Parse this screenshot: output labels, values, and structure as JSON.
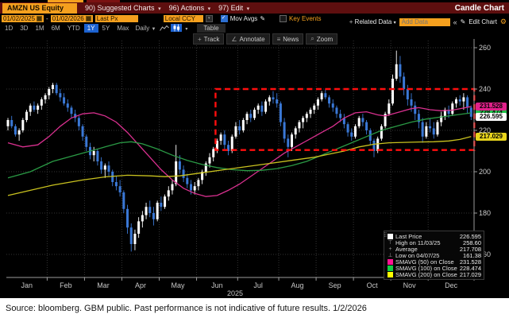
{
  "title_bar": {
    "ticker": "AMZN US Equity",
    "menus": [
      {
        "label": "90) Suggested Charts"
      },
      {
        "label": "96) Actions"
      },
      {
        "label": "97) Edit"
      }
    ],
    "chart_type": "Candle Chart"
  },
  "toolbar": {
    "date_from": "01/02/2025",
    "date_to": "01/02/2026",
    "px_field": "Last Px",
    "currency": "Local CCY",
    "mov_avgs_label": "Mov Avgs",
    "mov_avgs_checked": true,
    "key_events_label": "Key Events",
    "key_events_checked": false,
    "related_data_label": "Related Data",
    "add_data_placeholder": "Add Data",
    "collapse_label": "«",
    "edit_chart_label": "Edit Chart"
  },
  "range_bar": {
    "ranges": [
      "1D",
      "3D",
      "1M",
      "6M",
      "YTD",
      "1Y",
      "5Y",
      "Max"
    ],
    "selected_range": "1Y",
    "period": "Daily",
    "table_label": "Table"
  },
  "chart_toolbar": {
    "buttons": [
      {
        "icon": "+",
        "label": "Track"
      },
      {
        "icon": "∠",
        "label": "Annotate"
      },
      {
        "icon": "≡",
        "label": "News"
      },
      {
        "icon": "⌕",
        "label": "Zoom"
      }
    ]
  },
  "axes": {
    "y_ticks": [
      260,
      240,
      220,
      200,
      180,
      160
    ],
    "x_labels": [
      "Jan",
      "Feb",
      "Mar",
      "Apr",
      "May",
      "Jun",
      "Jul",
      "Aug",
      "Sep",
      "Oct",
      "Nov",
      "Dec"
    ],
    "year_label": "2025"
  },
  "price_tags": [
    {
      "value": "231.528",
      "color": "#e0218a",
      "text": "#000",
      "price": 231.528,
      "z": 3
    },
    {
      "value": "228.474",
      "color": "#1fc24a",
      "text": "#000",
      "price": 228.474,
      "z": 1
    },
    {
      "value": "226.595",
      "color": "#ffffff",
      "text": "#000",
      "price": 226.595,
      "z": 2
    },
    {
      "value": "217.029",
      "color": "#e8d51c",
      "text": "#000",
      "price": 217.029,
      "z": 1
    }
  ],
  "legend": {
    "rows": [
      {
        "marker": "square",
        "color": "#ffffff",
        "label": "Last Price",
        "value": "226.595"
      },
      {
        "marker": "glyph",
        "glyph": "⊤",
        "label": "High on 11/03/25",
        "value": "258.60"
      },
      {
        "marker": "glyph",
        "glyph": "+",
        "label": "Average",
        "value": "217.708"
      },
      {
        "marker": "glyph",
        "glyph": "⊥",
        "label": "Low on 04/07/25",
        "value": "161.38"
      },
      {
        "marker": "square",
        "color": "#ff1493",
        "label": "SMAVG (50)  on Close",
        "value": "231.528"
      },
      {
        "marker": "square",
        "color": "#0fd143",
        "label": "SMAVG (100)  on Close",
        "value": "228.474"
      },
      {
        "marker": "square",
        "color": "#ffff00",
        "label": "SMAVG (200)  on Close",
        "value": "217.029"
      }
    ]
  },
  "footer": {
    "source_text": "Source: bloomberg. GBM public. Past performance is not indicative of future results. 1/2/2026"
  },
  "chart_data": {
    "type": "candlestick",
    "security": "AMZN US Equity",
    "period": "Daily, 01/02/2025 - 01/02/2026",
    "ylim": [
      155,
      265
    ],
    "up_color": "#ffffff",
    "down_color": "#3a78d6",
    "month_start_idx": [
      0,
      11,
      21,
      31,
      41,
      51,
      62,
      73,
      83,
      93,
      103,
      113
    ],
    "candles": [
      [
        222,
        226,
        220,
        225
      ],
      [
        225,
        227,
        221,
        222
      ],
      [
        222,
        223,
        217,
        218
      ],
      [
        218,
        221,
        215,
        220
      ],
      [
        220,
        226,
        219,
        225
      ],
      [
        225,
        230,
        224,
        229
      ],
      [
        229,
        233,
        227,
        232
      ],
      [
        232,
        234,
        229,
        230
      ],
      [
        230,
        233,
        228,
        232
      ],
      [
        232,
        236,
        230,
        235
      ],
      [
        235,
        238,
        233,
        237
      ],
      [
        237,
        241,
        235,
        240
      ],
      [
        240,
        243,
        238,
        242
      ],
      [
        242,
        243,
        237,
        238
      ],
      [
        238,
        240,
        234,
        236
      ],
      [
        236,
        238,
        232,
        233
      ],
      [
        233,
        235,
        229,
        231
      ],
      [
        231,
        232,
        226,
        228
      ],
      [
        228,
        230,
        224,
        226
      ],
      [
        226,
        227,
        220,
        222
      ],
      [
        222,
        223,
        215,
        217
      ],
      [
        217,
        218,
        210,
        212
      ],
      [
        212,
        214,
        206,
        208
      ],
      [
        208,
        212,
        205,
        210
      ],
      [
        210,
        211,
        203,
        205
      ],
      [
        205,
        207,
        199,
        201
      ],
      [
        201,
        204,
        197,
        203
      ],
      [
        203,
        205,
        198,
        200
      ],
      [
        200,
        201,
        193,
        195
      ],
      [
        195,
        198,
        191,
        193
      ],
      [
        193,
        196,
        188,
        190
      ],
      [
        190,
        191,
        180,
        182
      ],
      [
        182,
        184,
        170,
        173
      ],
      [
        173,
        175,
        161.38,
        165
      ],
      [
        165,
        172,
        162,
        170
      ],
      [
        170,
        178,
        168,
        176
      ],
      [
        176,
        181,
        173,
        179
      ],
      [
        179,
        185,
        177,
        183
      ],
      [
        183,
        186,
        178,
        180
      ],
      [
        180,
        183,
        174,
        177
      ],
      [
        177,
        186,
        176,
        185
      ],
      [
        185,
        188,
        181,
        183
      ],
      [
        183,
        189,
        182,
        188
      ],
      [
        188,
        193,
        186,
        191
      ],
      [
        191,
        196,
        189,
        194
      ],
      [
        194,
        213,
        193,
        205
      ],
      [
        205,
        208,
        199,
        201
      ],
      [
        201,
        203,
        195,
        197
      ],
      [
        197,
        199,
        192,
        194
      ],
      [
        194,
        196,
        189,
        191
      ],
      [
        191,
        195,
        189,
        193
      ],
      [
        193,
        197,
        191,
        196
      ],
      [
        196,
        201,
        194,
        200
      ],
      [
        200,
        205,
        198,
        204
      ],
      [
        204,
        209,
        202,
        207
      ],
      [
        207,
        212,
        205,
        211
      ],
      [
        211,
        216,
        209,
        215
      ],
      [
        215,
        219,
        213,
        218
      ],
      [
        218,
        220,
        211,
        213
      ],
      [
        213,
        215,
        208,
        210
      ],
      [
        210,
        218,
        209,
        217
      ],
      [
        217,
        224,
        216,
        222
      ],
      [
        222,
        225,
        218,
        220
      ],
      [
        220,
        226,
        219,
        225
      ],
      [
        225,
        229,
        223,
        228
      ],
      [
        228,
        230,
        224,
        226
      ],
      [
        226,
        231,
        225,
        230
      ],
      [
        230,
        233,
        228,
        232
      ],
      [
        232,
        234,
        227,
        229
      ],
      [
        229,
        235,
        228,
        234
      ],
      [
        234,
        237,
        232,
        236
      ],
      [
        236,
        239,
        233,
        235
      ],
      [
        235,
        238,
        231,
        233
      ],
      [
        233,
        234,
        222,
        224
      ],
      [
        224,
        226,
        214,
        216
      ],
      [
        216,
        218,
        207,
        212
      ],
      [
        212,
        219,
        210,
        218
      ],
      [
        218,
        222,
        216,
        221
      ],
      [
        221,
        225,
        219,
        224
      ],
      [
        224,
        227,
        221,
        226
      ],
      [
        226,
        229,
        224,
        228
      ],
      [
        228,
        231,
        226,
        230
      ],
      [
        230,
        233,
        228,
        232
      ],
      [
        232,
        236,
        230,
        235
      ],
      [
        235,
        239,
        234,
        238
      ],
      [
        238,
        240,
        235,
        236
      ],
      [
        236,
        237,
        231,
        233
      ],
      [
        233,
        235,
        229,
        231
      ],
      [
        231,
        232,
        226,
        228
      ],
      [
        228,
        230,
        224,
        226
      ],
      [
        226,
        228,
        221,
        223
      ],
      [
        223,
        224,
        217,
        219
      ],
      [
        219,
        221,
        215,
        217
      ],
      [
        217,
        223,
        216,
        222
      ],
      [
        222,
        227,
        221,
        226
      ],
      [
        226,
        228,
        222,
        224
      ],
      [
        224,
        225,
        218,
        220
      ],
      [
        220,
        221,
        213,
        215
      ],
      [
        215,
        216,
        207,
        210
      ],
      [
        210,
        217,
        209,
        216
      ],
      [
        216,
        223,
        215,
        222
      ],
      [
        222,
        229,
        221,
        228
      ],
      [
        228,
        235,
        227,
        233
      ],
      [
        233,
        247,
        232,
        245
      ],
      [
        245,
        258.6,
        244,
        252
      ],
      [
        252,
        256,
        243,
        246
      ],
      [
        246,
        248,
        237,
        240
      ],
      [
        240,
        242,
        232,
        235
      ],
      [
        235,
        238,
        229,
        232
      ],
      [
        232,
        234,
        225,
        228
      ],
      [
        228,
        230,
        221,
        224
      ],
      [
        224,
        226,
        214,
        217
      ],
      [
        217,
        224,
        216,
        222
      ],
      [
        222,
        226,
        219,
        221
      ],
      [
        221,
        224,
        216,
        218
      ],
      [
        218,
        225,
        217,
        224
      ],
      [
        224,
        229,
        222,
        227
      ],
      [
        227,
        231,
        225,
        230
      ],
      [
        230,
        232,
        226,
        228
      ],
      [
        228,
        234,
        227,
        233
      ],
      [
        233,
        236,
        231,
        235
      ],
      [
        235,
        237,
        232,
        234
      ],
      [
        234,
        238,
        230,
        236
      ],
      [
        236,
        237,
        228,
        231
      ],
      [
        231,
        232,
        225,
        226.595
      ]
    ],
    "smavg50": {
      "color": "#d9308f",
      "points": [
        [
          0,
          214
        ],
        [
          4,
          212
        ],
        [
          8,
          213
        ],
        [
          11,
          217
        ],
        [
          14,
          222
        ],
        [
          17,
          226
        ],
        [
          20,
          228
        ],
        [
          23,
          228.5
        ],
        [
          26,
          227
        ],
        [
          29,
          224
        ],
        [
          32,
          219
        ],
        [
          35,
          213
        ],
        [
          38,
          207
        ],
        [
          41,
          201
        ],
        [
          44,
          196
        ],
        [
          47,
          192
        ],
        [
          50,
          189.5
        ],
        [
          53,
          188
        ],
        [
          56,
          188.5
        ],
        [
          59,
          191
        ],
        [
          62,
          194
        ],
        [
          66,
          199
        ],
        [
          70,
          204
        ],
        [
          74,
          209
        ],
        [
          78,
          213
        ],
        [
          81,
          216
        ],
        [
          84,
          219
        ],
        [
          87,
          222
        ],
        [
          90,
          226
        ],
        [
          93,
          228.5
        ],
        [
          96,
          229
        ],
        [
          99,
          227.5
        ],
        [
          101,
          227
        ],
        [
          103,
          228
        ],
        [
          105,
          229
        ],
        [
          108,
          230.5
        ],
        [
          110,
          231
        ],
        [
          113,
          230
        ],
        [
          116,
          229.5
        ],
        [
          119,
          229.8
        ],
        [
          122,
          230.8
        ],
        [
          124,
          231.528
        ]
      ]
    },
    "smavg100": {
      "color": "#2a9a45",
      "points": [
        [
          0,
          197
        ],
        [
          6,
          200
        ],
        [
          12,
          205
        ],
        [
          20,
          209
        ],
        [
          26,
          212
        ],
        [
          30,
          214
        ],
        [
          33,
          214.5
        ],
        [
          36,
          213.5
        ],
        [
          40,
          211
        ],
        [
          44,
          208
        ],
        [
          48,
          205.5
        ],
        [
          52,
          203.5
        ],
        [
          56,
          202
        ],
        [
          60,
          201
        ],
        [
          64,
          200.5
        ],
        [
          68,
          200.7
        ],
        [
          72,
          201.5
        ],
        [
          76,
          203
        ],
        [
          80,
          205
        ],
        [
          84,
          208
        ],
        [
          88,
          211
        ],
        [
          92,
          214
        ],
        [
          96,
          217
        ],
        [
          100,
          220
        ],
        [
          104,
          222
        ],
        [
          108,
          224
        ],
        [
          112,
          225.5
        ],
        [
          116,
          226.5
        ],
        [
          120,
          227.5
        ],
        [
          124,
          228.474
        ]
      ]
    },
    "smavg200": {
      "color": "#c9c21f",
      "points": [
        [
          0,
          188.5
        ],
        [
          6,
          191
        ],
        [
          12,
          193.5
        ],
        [
          20,
          196
        ],
        [
          26,
          197.5
        ],
        [
          32,
          198.3
        ],
        [
          38,
          198
        ],
        [
          42,
          197.6
        ],
        [
          46,
          198
        ],
        [
          52,
          199.5
        ],
        [
          58,
          201
        ],
        [
          64,
          202.5
        ],
        [
          70,
          204
        ],
        [
          76,
          205.5
        ],
        [
          82,
          207
        ],
        [
          86,
          208.5
        ],
        [
          90,
          210
        ],
        [
          94,
          212
        ],
        [
          98,
          213.3
        ],
        [
          102,
          214
        ],
        [
          106,
          214.2
        ],
        [
          110,
          214.4
        ],
        [
          114,
          214.5
        ],
        [
          118,
          214.9
        ],
        [
          121,
          215.6
        ],
        [
          124,
          217.029
        ]
      ]
    },
    "annotation_rect": {
      "start_candle": 56,
      "end_candle": 124,
      "top_price": 240,
      "bottom_price": 210.5,
      "color": "#ff0e0e"
    }
  }
}
